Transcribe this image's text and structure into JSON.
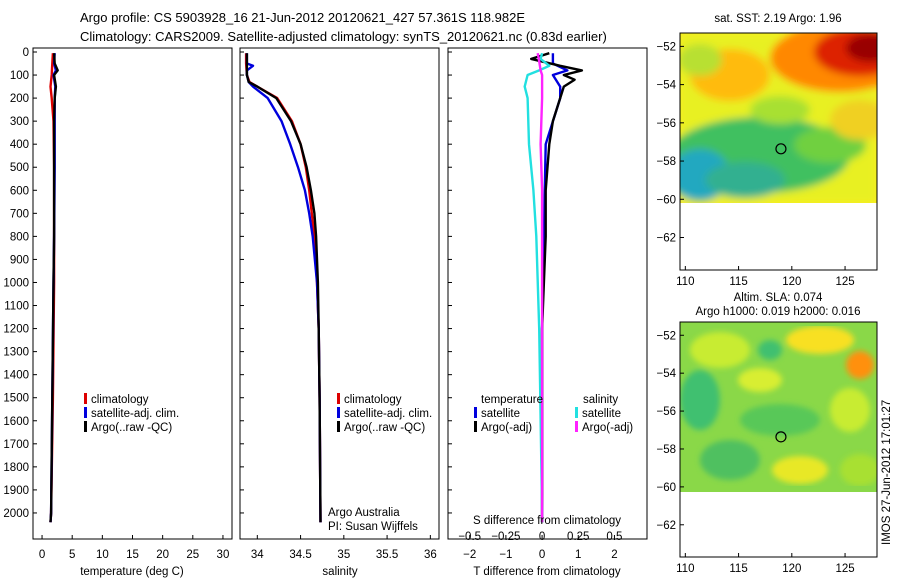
{
  "header": {
    "line1": "Argo profile: CS 5903928_16 21-Jun-2012 20120621_427 57.361S 118.982E",
    "line2": "Climatology: CARS2009. Satellite-adjusted climatology: synTS_20120621.nc (0.83d earlier)"
  },
  "colors": {
    "red": "#dd0000",
    "blue": "#0000dd",
    "black": "#000000",
    "cyan": "#22e0e0",
    "magenta": "#ff22ff"
  },
  "chart_data": [
    {
      "type": "line",
      "id": "temperature",
      "xlabel": "temperature (deg C)",
      "xlim": [
        -1.5,
        31.5
      ],
      "xticks": [
        0,
        5,
        10,
        15,
        20,
        25,
        30
      ],
      "xtick_labels": [
        "0",
        "5",
        "10",
        "15",
        "20",
        "25",
        "30"
      ],
      "ylim": [
        2100,
        0
      ],
      "yticks": [
        0,
        100,
        200,
        300,
        400,
        500,
        600,
        700,
        800,
        900,
        1000,
        1100,
        1200,
        1300,
        1400,
        1500,
        1600,
        1700,
        1800,
        1900,
        2000
      ],
      "ytick_labels": [
        "0",
        "100",
        "200",
        "300",
        "400",
        "500",
        "600",
        "700",
        "800",
        "900",
        "1000",
        "1100",
        "1200",
        "1300",
        "1400",
        "1500",
        "1600",
        "1700",
        "1800",
        "1900",
        "2000"
      ],
      "legend": [
        "climatology",
        "satellite-adj. clim.",
        "Argo(..raw -QC)"
      ],
      "series": [
        {
          "name": "climatology",
          "color": "red",
          "depth": [
            5,
            50,
            100,
            150,
            200,
            300,
            500,
            800,
            1000,
            1500,
            2000,
            2040
          ],
          "values": [
            1.8,
            1.7,
            1.6,
            1.4,
            1.6,
            1.9,
            2.0,
            2.0,
            2.0,
            1.8,
            1.5,
            1.4
          ]
        },
        {
          "name": "satellite-adj. clim.",
          "color": "blue",
          "depth": [
            5,
            50,
            80,
            100,
            150,
            200,
            300,
            500,
            800,
            1000,
            1500,
            2000,
            2040
          ],
          "values": [
            2.1,
            2.0,
            2.3,
            1.9,
            2.2,
            2.1,
            2.1,
            2.1,
            2.0,
            1.9,
            1.7,
            1.5,
            1.4
          ]
        },
        {
          "name": "Argo(..raw -QC)",
          "color": "black",
          "depth": [
            5,
            50,
            80,
            100,
            150,
            200,
            300,
            500,
            800,
            1000,
            1500,
            2000,
            2040
          ],
          "values": [
            2.0,
            2.1,
            2.6,
            2.0,
            2.3,
            2.1,
            2.0,
            2.0,
            2.0,
            1.9,
            1.7,
            1.5,
            1.4
          ]
        }
      ]
    },
    {
      "type": "line",
      "id": "salinity",
      "xlabel": "salinity",
      "xlim": [
        33.8,
        36.1
      ],
      "xticks": [
        34,
        34.5,
        35,
        35.5,
        36
      ],
      "xtick_labels": [
        "34",
        "34.5",
        "35",
        "35.5",
        "36"
      ],
      "ylim": [
        2100,
        0
      ],
      "legend": [
        "climatology",
        "satellite-adj. clim.",
        "Argo(..raw -QC)"
      ],
      "annotations": [
        "Argo Australia",
        "PI: Susan Wijffels"
      ],
      "series": [
        {
          "name": "climatology",
          "color": "red",
          "depth": [
            5,
            50,
            100,
            130,
            150,
            200,
            300,
            400,
            500,
            600,
            700,
            800,
            1000,
            1200,
            1500,
            2040
          ],
          "values": [
            33.87,
            33.87,
            33.88,
            33.91,
            34.0,
            34.23,
            34.4,
            34.5,
            34.56,
            34.6,
            34.63,
            34.66,
            34.69,
            34.71,
            34.72,
            34.73
          ]
        },
        {
          "name": "satellite-adj. clim.",
          "color": "blue",
          "depth": [
            5,
            50,
            60,
            80,
            100,
            130,
            150,
            200,
            300,
            400,
            500,
            600,
            700,
            800,
            1000,
            1200,
            1500,
            2040
          ],
          "values": [
            33.88,
            33.88,
            33.95,
            33.88,
            33.88,
            33.9,
            33.95,
            34.12,
            34.28,
            34.38,
            34.47,
            34.55,
            34.6,
            34.64,
            34.69,
            34.71,
            34.72,
            34.73
          ]
        },
        {
          "name": "Argo(..raw -QC)",
          "color": "black",
          "depth": [
            5,
            50,
            100,
            130,
            150,
            200,
            300,
            400,
            500,
            600,
            700,
            800,
            1000,
            1200,
            1500,
            2040
          ],
          "values": [
            33.88,
            33.88,
            33.88,
            33.9,
            34.0,
            34.22,
            34.39,
            34.5,
            34.57,
            34.62,
            34.66,
            34.68,
            34.7,
            34.71,
            34.72,
            34.73
          ]
        }
      ]
    },
    {
      "type": "line",
      "id": "difference",
      "xlabel": "T difference from climatology",
      "xlabel2": "S difference from climatology",
      "xlim": [
        -2.6,
        2.9
      ],
      "xticks": [
        -2,
        -1,
        0,
        1,
        2
      ],
      "xtick_labels": [
        "−2",
        "−1",
        "0",
        "1",
        "2"
      ],
      "xlim_s": [
        -0.65,
        0.725
      ],
      "xticks_s": [
        -0.5,
        -0.25,
        0,
        0.25,
        0.5
      ],
      "xtick_labels_s": [
        "−0.5",
        "−0.25",
        "0",
        "0.25",
        "0.5"
      ],
      "ylim": [
        2100,
        0
      ],
      "legend_titles": [
        "temperature",
        "salinity"
      ],
      "legend": [
        "satellite",
        "Argo(-adj)",
        "satellite",
        "Argo(-adj)"
      ],
      "series": [
        {
          "name": "temperature satellite",
          "color": "blue",
          "depth": [
            5,
            50,
            80,
            100,
            150,
            200,
            400,
            800,
            1200,
            2000,
            2040
          ],
          "values": [
            0.3,
            0.3,
            0.7,
            0.3,
            0.5,
            0.5,
            0.1,
            0.05,
            0.0,
            0.0,
            0.0
          ]
        },
        {
          "name": "temperature Argo(-adj)",
          "color": "black",
          "depth": [
            5,
            30,
            60,
            80,
            100,
            120,
            150,
            200,
            300,
            400,
            600,
            800,
            1200,
            2000,
            2040
          ],
          "values": [
            0.2,
            -0.3,
            0.5,
            1.1,
            0.6,
            0.9,
            0.6,
            0.5,
            0.3,
            0.2,
            0.1,
            0.1,
            0.0,
            0.0,
            0.0
          ]
        },
        {
          "name": "salinity satellite",
          "color": "cyan",
          "depth": [
            5,
            30,
            60,
            80,
            100,
            150,
            200,
            400,
            600,
            800,
            1200,
            2000,
            2040
          ],
          "values": [
            0.0,
            -0.01,
            0.05,
            -0.02,
            -0.1,
            -0.12,
            -0.1,
            -0.09,
            -0.06,
            -0.04,
            -0.02,
            0.0,
            0.0
          ]
        },
        {
          "name": "salinity Argo(-adj)",
          "color": "magenta",
          "depth": [
            5,
            40,
            80,
            100,
            150,
            200,
            400,
            600,
            800,
            1200,
            2000,
            2040
          ],
          "values": [
            -0.03,
            -0.02,
            -0.01,
            0.0,
            0.0,
            0.0,
            -0.01,
            0.0,
            0.0,
            0.0,
            0.0,
            0.0
          ]
        }
      ]
    }
  ],
  "maps": [
    {
      "title": "sat. SST: 2.19 Argo: 1.96",
      "subtitle": ""
    },
    {
      "title": "Altim. SLA: 0.074",
      "subtitle": "Argo h1000: 0.019 h2000: 0.016"
    }
  ],
  "map_axes": {
    "xticks": [
      110,
      115,
      120,
      125
    ],
    "xtick_labels": [
      "110",
      "115",
      "120",
      "125"
    ],
    "yticks": [
      -52,
      -54,
      -56,
      -58,
      -60,
      -62
    ],
    "ytick_labels": [
      "−52",
      "−54",
      "−56",
      "−58",
      "−60",
      "−62"
    ],
    "xlim": [
      109.5,
      128
    ],
    "ylim": [
      -51.3,
      -63.7
    ],
    "marker_lon": 118.98,
    "marker_lat": -57.36
  },
  "footer": {
    "stamp": "IMOS 27-Jun-2012 17:01:27"
  }
}
